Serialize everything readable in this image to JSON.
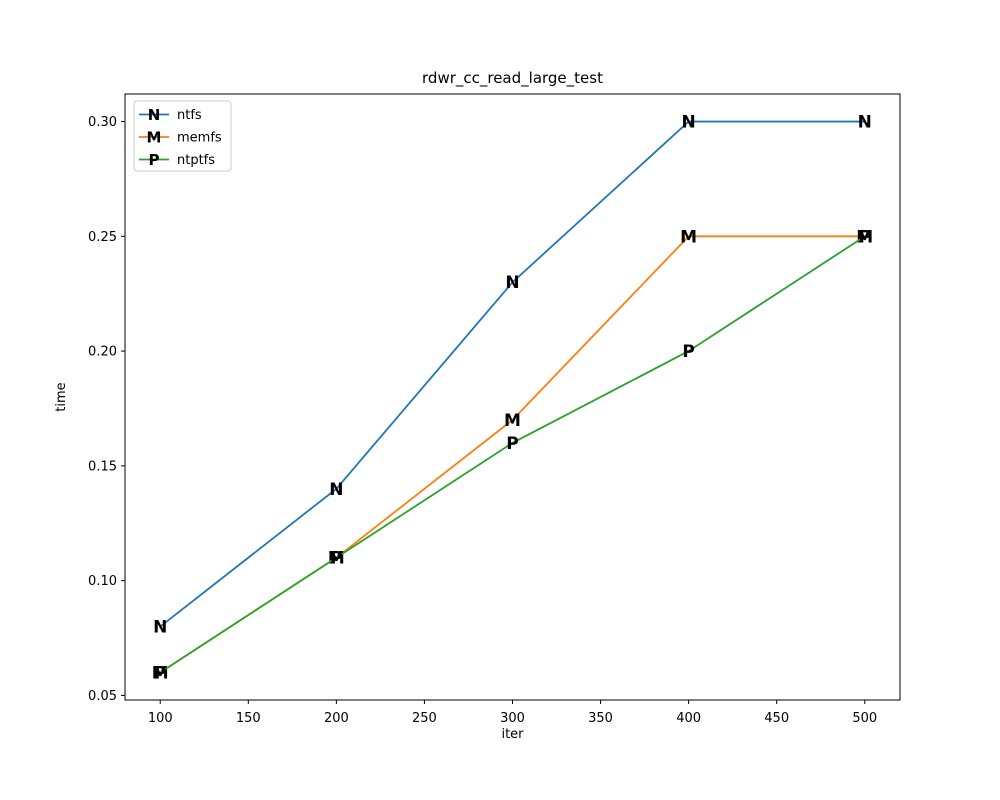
{
  "figure": {
    "background": "#ffffff",
    "text_color": "#000000",
    "spine_color": "#000000",
    "legend_border_color": "#cccccc"
  },
  "chart_data": {
    "type": "line",
    "title": "rdwr_cc_read_large_test",
    "xlabel": "iter",
    "ylabel": "time",
    "x": [
      100,
      200,
      300,
      400,
      500
    ],
    "series": [
      {
        "name": "ntfs",
        "color": "#1f77b4",
        "marker": "N",
        "values": [
          0.08,
          0.14,
          0.23,
          0.3,
          0.3
        ]
      },
      {
        "name": "memfs",
        "color": "#ff7f0e",
        "marker": "M",
        "values": [
          0.06,
          0.11,
          0.17,
          0.25,
          0.25
        ]
      },
      {
        "name": "ntptfs",
        "color": "#2ca02c",
        "marker": "P",
        "values": [
          0.06,
          0.11,
          0.16,
          0.2,
          0.25
        ]
      }
    ],
    "xticks": [
      100,
      150,
      200,
      250,
      300,
      350,
      400,
      450,
      500
    ],
    "yticks": [
      "0.05",
      "0.10",
      "0.15",
      "0.20",
      "0.25",
      "0.30"
    ],
    "xlim": [
      80,
      520
    ],
    "ylim": [
      0.048,
      0.312
    ],
    "grid": false,
    "legend": {
      "position": "upper left",
      "entries": [
        "ntfs",
        "memfs",
        "ntptfs"
      ]
    }
  }
}
